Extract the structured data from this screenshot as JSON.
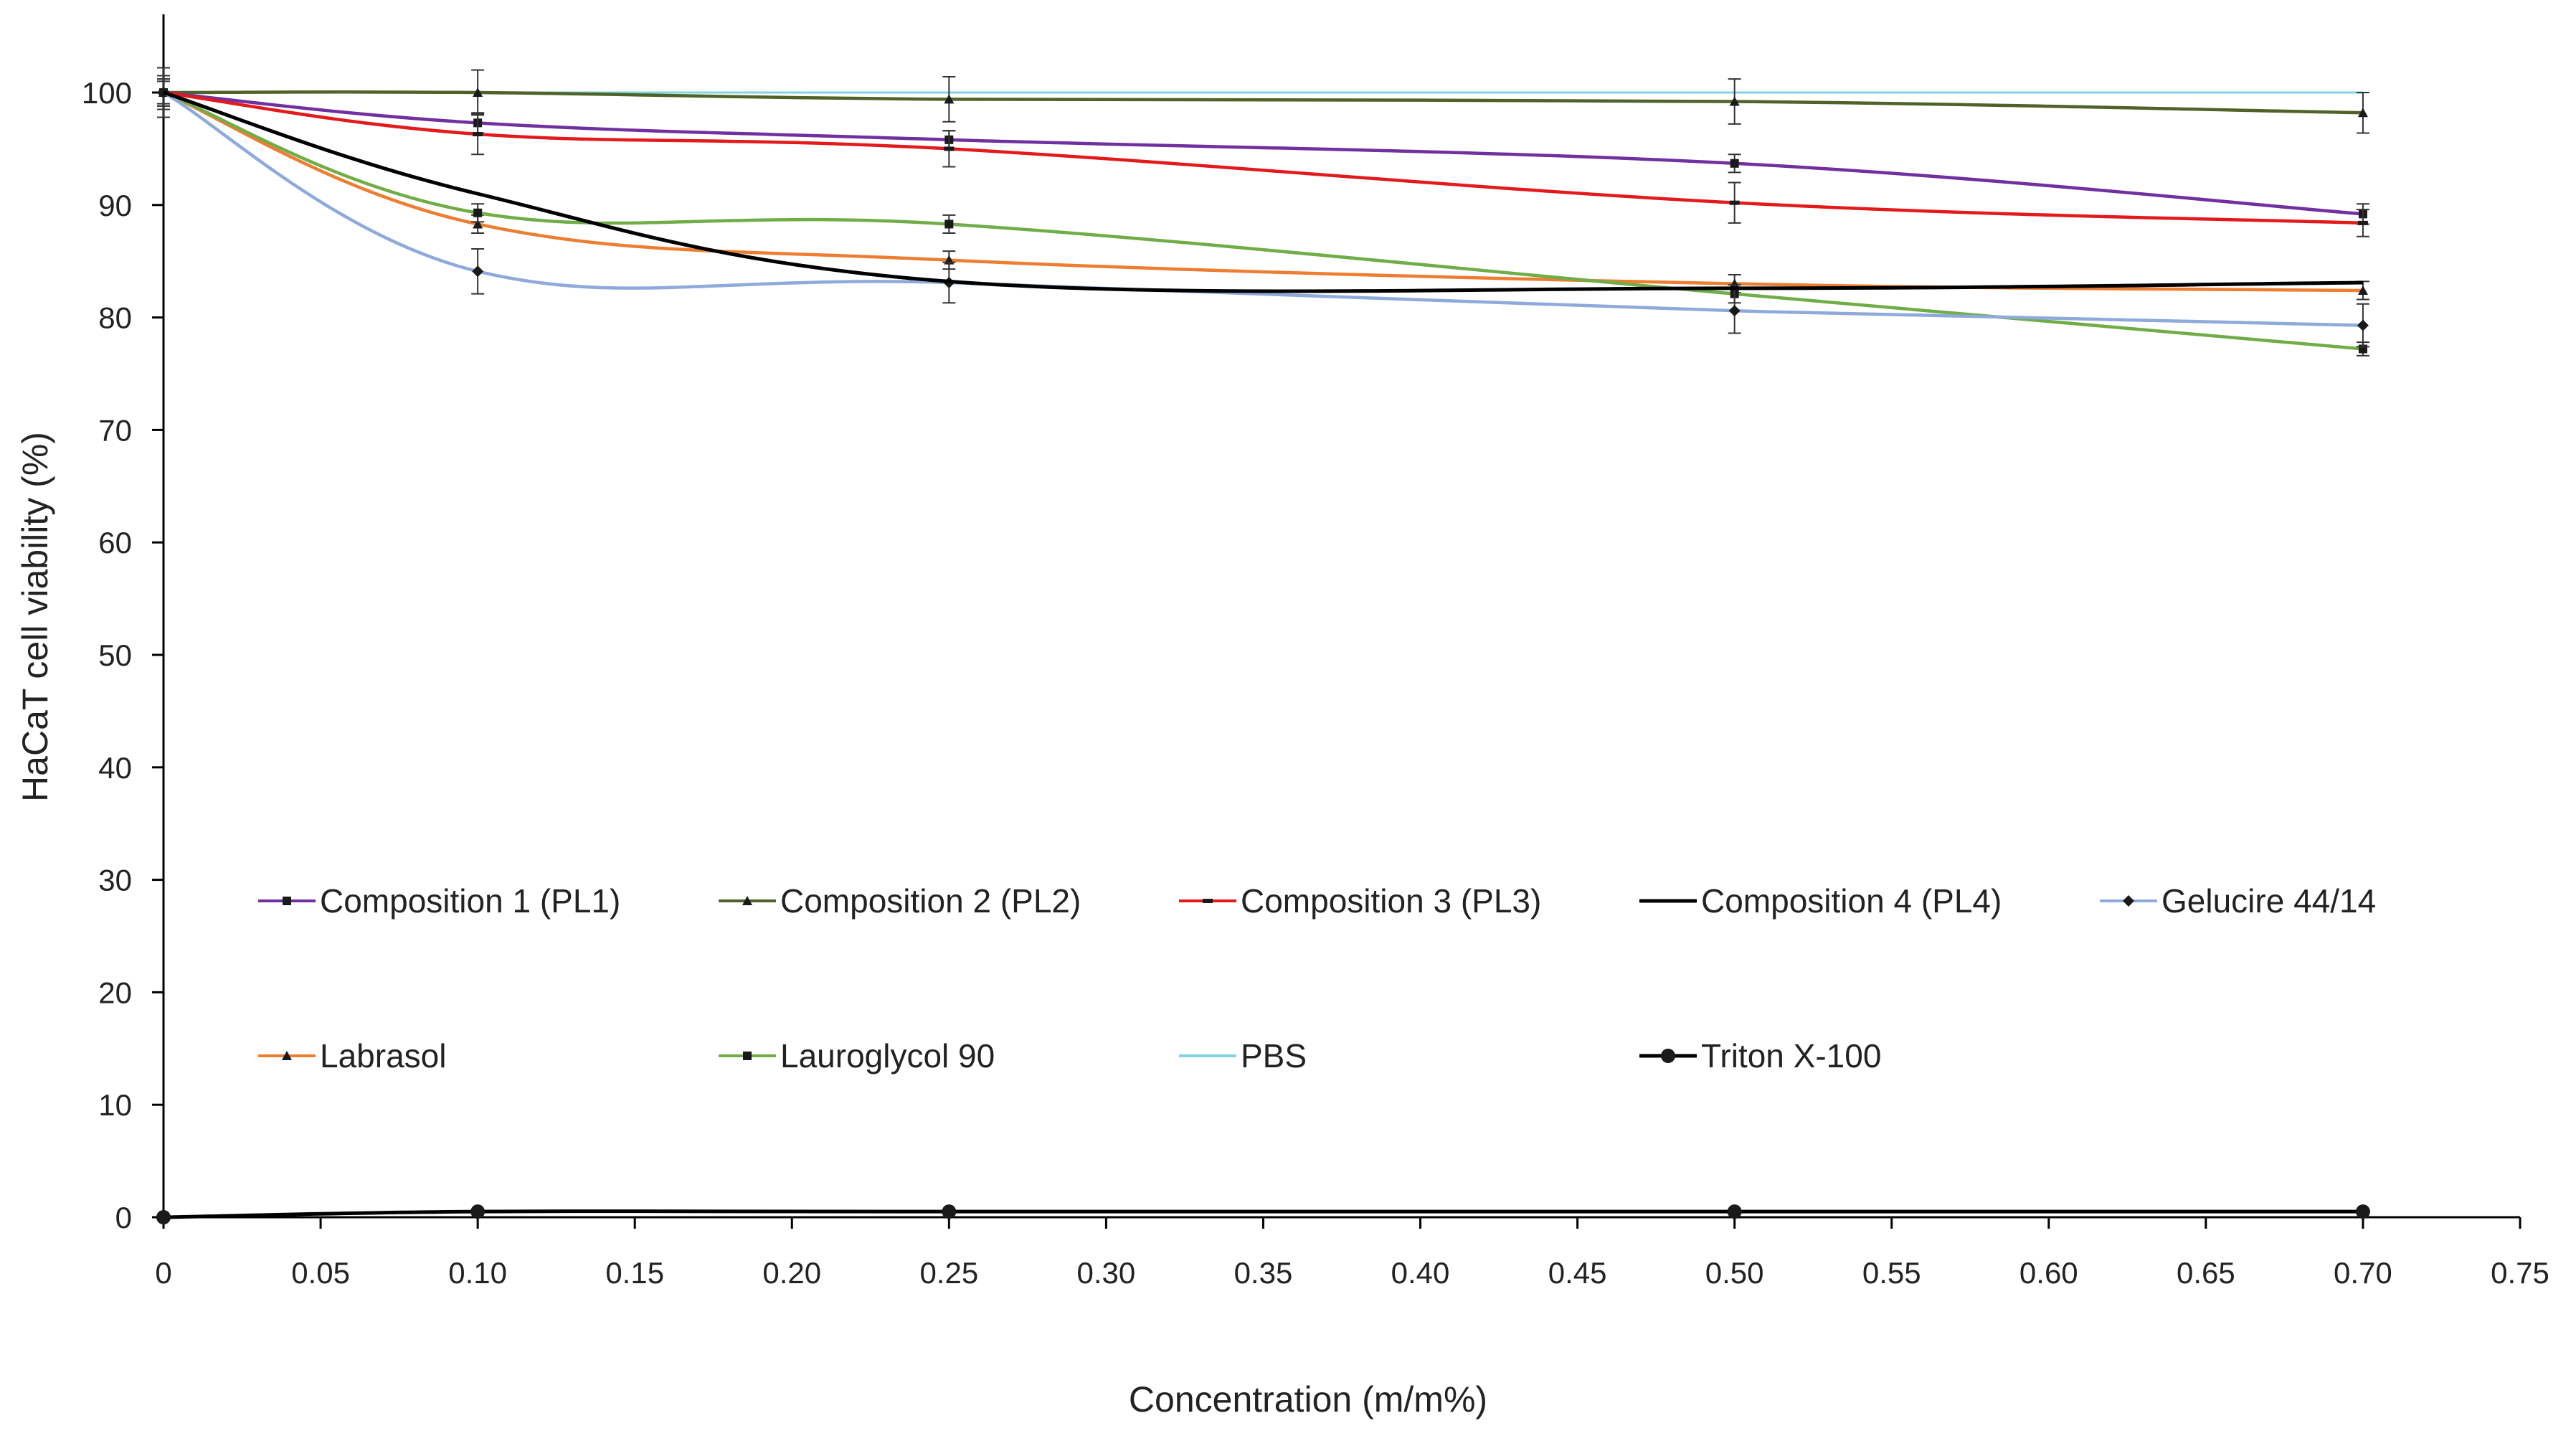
{
  "chart_data": {
    "type": "line",
    "title": "",
    "xlabel": "Concentration (m/m%)",
    "ylabel": "HaCaT cell viability (%)",
    "xlim": [
      0,
      0.75
    ],
    "ylim": [
      0,
      105
    ],
    "x_ticks": [
      0,
      0.05,
      0.1,
      0.15,
      0.2,
      0.25,
      0.3,
      0.35,
      0.4,
      0.45,
      0.5,
      0.55,
      0.6,
      0.65,
      0.7,
      0.75
    ],
    "x_tick_labels": [
      "0",
      "0.05",
      "0.10",
      "0.15",
      "0.20",
      "0.25",
      "0.30",
      "0.35",
      "0.40",
      "0.45",
      "0.50",
      "0.55",
      "0.60",
      "0.65",
      "0.70",
      "0.75"
    ],
    "y_ticks": [
      0,
      10,
      20,
      30,
      40,
      50,
      60,
      70,
      80,
      90,
      100
    ],
    "y_tick_labels": [
      "0",
      "10",
      "20",
      "30",
      "40",
      "50",
      "60",
      "70",
      "80",
      "90",
      "100"
    ],
    "grid": false,
    "legend_position": "center",
    "x": [
      0,
      0.1,
      0.25,
      0.5,
      0.7
    ],
    "series": [
      {
        "name": "Composition 1 (PL1)",
        "color": "#7030a0",
        "marker": "square",
        "values": [
          100,
          97.3,
          95.8,
          93.7,
          89.2
        ],
        "errors": [
          1.5,
          0.9,
          0.8,
          0.8,
          0.9
        ]
      },
      {
        "name": "Composition 2 (PL2)",
        "color": "#4f6228",
        "marker": "triangle",
        "values": [
          100,
          100,
          99.4,
          99.2,
          98.2
        ],
        "errors": [
          2.2,
          2.0,
          2.0,
          2.0,
          1.8
        ]
      },
      {
        "name": "Composition 3 (PL3)",
        "color": "#e31a1c",
        "marker": "dash",
        "values": [
          100,
          96.3,
          95.0,
          90.2,
          88.4
        ],
        "errors": [
          1.5,
          1.8,
          1.6,
          1.8,
          1.2
        ]
      },
      {
        "name": "Composition 4 (PL4)",
        "color": "#000000",
        "marker": "none",
        "values": [
          100,
          91.0,
          83.2,
          82.6,
          83.1
        ],
        "errors": [
          0,
          0,
          0,
          0,
          0
        ]
      },
      {
        "name": "Gelucire 44/14",
        "color": "#8eaadb",
        "marker": "diamond",
        "values": [
          100,
          84.1,
          83.1,
          80.6,
          79.3
        ],
        "errors": [
          1.2,
          2.0,
          1.8,
          2.0,
          1.9
        ]
      },
      {
        "name": "Labrasol",
        "color": "#ed7d31",
        "marker": "triangle",
        "values": [
          100,
          88.3,
          85.1,
          83.0,
          82.4
        ],
        "errors": [
          1.0,
          0.8,
          0.8,
          0.8,
          0.8
        ]
      },
      {
        "name": "Lauroglycol 90",
        "color": "#70ad47",
        "marker": "square",
        "values": [
          100,
          89.3,
          88.3,
          82.1,
          77.2
        ],
        "errors": [
          1.2,
          0.8,
          0.8,
          0.8,
          0.6
        ]
      },
      {
        "name": "PBS",
        "color": "#7fd6e0",
        "marker": "none",
        "values": [
          100,
          100,
          100,
          100,
          100
        ],
        "errors": [
          0,
          0,
          0,
          0,
          0
        ]
      },
      {
        "name": "Triton X-100",
        "color": "#000000",
        "marker": "circle",
        "values": [
          0,
          0.5,
          0.5,
          0.5,
          0.5
        ],
        "errors": [
          0,
          0,
          0,
          0,
          0
        ]
      }
    ]
  }
}
